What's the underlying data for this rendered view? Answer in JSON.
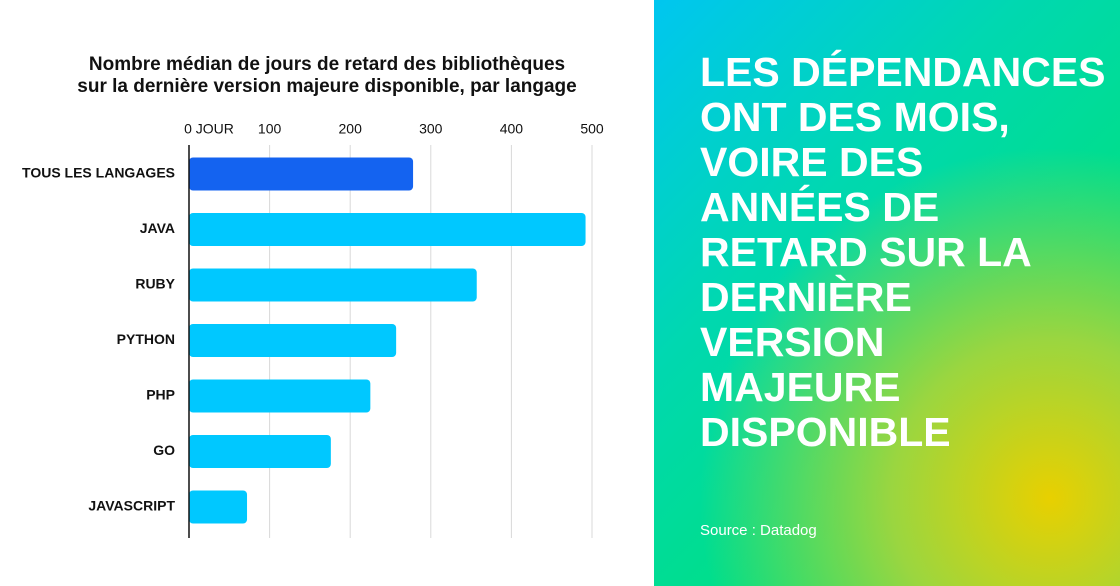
{
  "chart_data": {
    "type": "bar",
    "orientation": "horizontal",
    "title": [
      "Nombre médian de jours de retard des bibliothèques",
      "sur la dernière version majeure disponible, par langage"
    ],
    "categories": [
      "TOUS LES LANGAGES",
      "JAVA",
      "RUBY",
      "PYTHON",
      "PHP",
      "GO",
      "JAVASCRIPT"
    ],
    "values": [
      278,
      492,
      357,
      257,
      225,
      176,
      72
    ],
    "colors": [
      "#1463f0",
      "#00c8ff",
      "#00c8ff",
      "#00c8ff",
      "#00c8ff",
      "#00c8ff",
      "#00c8ff"
    ],
    "xlim": [
      0,
      500
    ],
    "xticks": [
      {
        "value": 0,
        "label": "0 JOUR"
      },
      100,
      200,
      300,
      400,
      500
    ],
    "grid": true
  },
  "panel": {
    "headline": [
      "LES DÉPENDANCES",
      "ONT DES MOIS,",
      "VOIRE DES",
      "ANNÉES DE",
      "RETARD SUR LA",
      "DERNIÈRE",
      "VERSION",
      "MAJEURE",
      "DISPONIBLE"
    ],
    "source": "Source : Datadog"
  }
}
